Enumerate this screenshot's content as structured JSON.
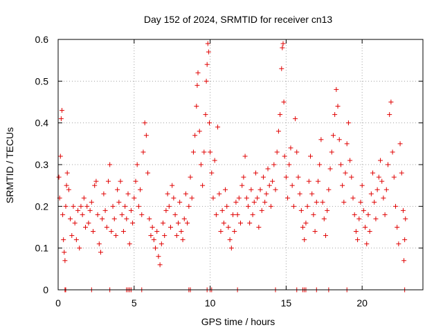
{
  "chart_data": {
    "type": "scatter",
    "title": "Day 152 of 2024, SRMTID for receiver cn13",
    "xlabel": "GPS time / hours",
    "ylabel": "SRMTID / TECUs",
    "xlim": [
      0,
      24
    ],
    "ylim": [
      0,
      0.6
    ],
    "x_ticks": [
      0,
      5,
      10,
      15,
      20
    ],
    "y_ticks": [
      0,
      0.1,
      0.2,
      0.3,
      0.4,
      0.5,
      0.6
    ],
    "x_tick_labels": [
      "0",
      "5",
      "10",
      "15",
      "20"
    ],
    "y_tick_labels": [
      "0",
      "0.1",
      "0.2",
      "0.3",
      "0.4",
      "0.5",
      "0.6"
    ],
    "grid": true,
    "marker": "+",
    "color": "#e00000",
    "series": [
      {
        "name": "SRMTID",
        "points": [
          [
            0.05,
            0.27
          ],
          [
            0.1,
            0.22
          ],
          [
            0.15,
            0.32
          ],
          [
            0.2,
            0.41
          ],
          [
            0.25,
            0.43
          ],
          [
            0.3,
            0.18
          ],
          [
            0.35,
            0.12
          ],
          [
            0.4,
            0.09
          ],
          [
            0.45,
            0.07
          ],
          [
            0.5,
            0.2
          ],
          [
            0.55,
            0.25
          ],
          [
            0.6,
            0.28
          ],
          [
            0.7,
            0.24
          ],
          [
            0.8,
            0.17
          ],
          [
            0.9,
            0.13
          ],
          [
            1.0,
            0.2
          ],
          [
            1.1,
            0.16
          ],
          [
            1.2,
            0.12
          ],
          [
            1.3,
            0.19
          ],
          [
            1.4,
            0.1
          ],
          [
            1.5,
            0.2
          ],
          [
            1.6,
            0.18
          ],
          [
            1.7,
            0.22
          ],
          [
            1.8,
            0.15
          ],
          [
            1.9,
            0.2
          ],
          [
            2.0,
            0.16
          ],
          [
            2.1,
            0.19
          ],
          [
            2.2,
            0.21
          ],
          [
            2.3,
            0.14
          ],
          [
            2.4,
            0.25
          ],
          [
            2.5,
            0.26
          ],
          [
            2.6,
            0.18
          ],
          [
            2.7,
            0.11
          ],
          [
            2.8,
            0.09
          ],
          [
            2.9,
            0.17
          ],
          [
            3.0,
            0.23
          ],
          [
            3.1,
            0.19
          ],
          [
            3.2,
            0.15
          ],
          [
            3.3,
            0.26
          ],
          [
            3.4,
            0.3
          ],
          [
            3.5,
            0.14
          ],
          [
            3.6,
            0.2
          ],
          [
            3.7,
            0.17
          ],
          [
            3.8,
            0.13
          ],
          [
            3.9,
            0.24
          ],
          [
            4.0,
            0.21
          ],
          [
            4.1,
            0.26
          ],
          [
            4.2,
            0.18
          ],
          [
            4.3,
            0.14
          ],
          [
            4.4,
            0.2
          ],
          [
            4.5,
            0.17
          ],
          [
            4.6,
            0.23
          ],
          [
            4.7,
            0.11
          ],
          [
            4.8,
            0.19
          ],
          [
            4.9,
            0.16
          ],
          [
            5.0,
            0.22
          ],
          [
            5.1,
            0.26
          ],
          [
            5.2,
            0.3
          ],
          [
            5.3,
            0.2
          ],
          [
            5.4,
            0.24
          ],
          [
            5.5,
            0.18
          ],
          [
            5.6,
            0.33
          ],
          [
            5.7,
            0.4
          ],
          [
            5.8,
            0.37
          ],
          [
            5.9,
            0.28
          ],
          [
            6.0,
            0.17
          ],
          [
            6.1,
            0.13
          ],
          [
            6.2,
            0.15
          ],
          [
            6.3,
            0.12
          ],
          [
            6.4,
            0.1
          ],
          [
            6.5,
            0.14
          ],
          [
            6.6,
            0.08
          ],
          [
            6.7,
            0.06
          ],
          [
            6.8,
            0.11
          ],
          [
            6.9,
            0.16
          ],
          [
            7.0,
            0.13
          ],
          [
            7.1,
            0.19
          ],
          [
            7.2,
            0.23
          ],
          [
            7.3,
            0.2
          ],
          [
            7.4,
            0.15
          ],
          [
            7.5,
            0.25
          ],
          [
            7.6,
            0.22
          ],
          [
            7.7,
            0.18
          ],
          [
            7.8,
            0.13
          ],
          [
            7.9,
            0.16
          ],
          [
            8.0,
            0.21
          ],
          [
            8.1,
            0.14
          ],
          [
            8.2,
            0.12
          ],
          [
            8.3,
            0.17
          ],
          [
            8.4,
            0.23
          ],
          [
            8.5,
            0.16
          ],
          [
            8.6,
            0.2
          ],
          [
            8.7,
            0.27
          ],
          [
            8.8,
            0.22
          ],
          [
            8.9,
            0.33
          ],
          [
            9.0,
            0.37
          ],
          [
            9.1,
            0.44
          ],
          [
            9.15,
            0.49
          ],
          [
            9.2,
            0.52
          ],
          [
            9.3,
            0.38
          ],
          [
            9.4,
            0.3
          ],
          [
            9.5,
            0.25
          ],
          [
            9.6,
            0.33
          ],
          [
            9.7,
            0.42
          ],
          [
            9.75,
            0.5
          ],
          [
            9.8,
            0.54
          ],
          [
            9.85,
            0.59
          ],
          [
            9.9,
            0.57
          ],
          [
            9.95,
            0.4
          ],
          [
            10.0,
            0.33
          ],
          [
            10.1,
            0.28
          ],
          [
            10.2,
            0.22
          ],
          [
            10.3,
            0.31
          ],
          [
            10.4,
            0.18
          ],
          [
            10.5,
            0.39
          ],
          [
            10.6,
            0.23
          ],
          [
            10.7,
            0.14
          ],
          [
            10.8,
            0.19
          ],
          [
            10.9,
            0.16
          ],
          [
            11.0,
            0.24
          ],
          [
            11.1,
            0.2
          ],
          [
            11.2,
            0.15
          ],
          [
            11.3,
            0.12
          ],
          [
            11.4,
            0.1
          ],
          [
            11.5,
            0.18
          ],
          [
            11.6,
            0.14
          ],
          [
            11.7,
            0.21
          ],
          [
            11.8,
            0.18
          ],
          [
            11.9,
            0.22
          ],
          [
            12.0,
            0.16
          ],
          [
            12.1,
            0.25
          ],
          [
            12.2,
            0.27
          ],
          [
            12.3,
            0.32
          ],
          [
            12.4,
            0.22
          ],
          [
            12.5,
            0.2
          ],
          [
            12.6,
            0.16
          ],
          [
            12.7,
            0.24
          ],
          [
            12.8,
            0.18
          ],
          [
            12.9,
            0.21
          ],
          [
            13.0,
            0.28
          ],
          [
            13.1,
            0.22
          ],
          [
            13.2,
            0.15
          ],
          [
            13.3,
            0.24
          ],
          [
            13.4,
            0.19
          ],
          [
            13.5,
            0.27
          ],
          [
            13.6,
            0.21
          ],
          [
            13.7,
            0.23
          ],
          [
            13.8,
            0.29
          ],
          [
            13.9,
            0.25
          ],
          [
            14.0,
            0.2
          ],
          [
            14.1,
            0.26
          ],
          [
            14.2,
            0.3
          ],
          [
            14.3,
            0.24
          ],
          [
            14.4,
            0.33
          ],
          [
            14.5,
            0.38
          ],
          [
            14.6,
            0.42
          ],
          [
            14.7,
            0.53
          ],
          [
            14.75,
            0.58
          ],
          [
            14.8,
            0.59
          ],
          [
            14.85,
            0.45
          ],
          [
            14.9,
            0.32
          ],
          [
            15.0,
            0.27
          ],
          [
            15.1,
            0.22
          ],
          [
            15.2,
            0.3
          ],
          [
            15.3,
            0.34
          ],
          [
            15.4,
            0.25
          ],
          [
            15.5,
            0.2
          ],
          [
            15.6,
            0.41
          ],
          [
            15.7,
            0.33
          ],
          [
            15.8,
            0.27
          ],
          [
            15.9,
            0.23
          ],
          [
            16.0,
            0.19
          ],
          [
            16.1,
            0.15
          ],
          [
            16.2,
            0.12
          ],
          [
            16.3,
            0.16
          ],
          [
            16.4,
            0.2
          ],
          [
            16.5,
            0.26
          ],
          [
            16.6,
            0.32
          ],
          [
            16.7,
            0.23
          ],
          [
            16.8,
            0.18
          ],
          [
            16.9,
            0.14
          ],
          [
            17.0,
            0.21
          ],
          [
            17.1,
            0.26
          ],
          [
            17.2,
            0.3
          ],
          [
            17.3,
            0.36
          ],
          [
            17.4,
            0.21
          ],
          [
            17.5,
            0.17
          ],
          [
            17.6,
            0.13
          ],
          [
            17.7,
            0.19
          ],
          [
            17.8,
            0.24
          ],
          [
            17.9,
            0.29
          ],
          [
            18.0,
            0.33
          ],
          [
            18.1,
            0.37
          ],
          [
            18.2,
            0.42
          ],
          [
            18.3,
            0.48
          ],
          [
            18.4,
            0.44
          ],
          [
            18.5,
            0.36
          ],
          [
            18.6,
            0.3
          ],
          [
            18.7,
            0.25
          ],
          [
            18.8,
            0.21
          ],
          [
            18.9,
            0.28
          ],
          [
            19.0,
            0.35
          ],
          [
            19.1,
            0.4
          ],
          [
            19.2,
            0.31
          ],
          [
            19.3,
            0.27
          ],
          [
            19.4,
            0.22
          ],
          [
            19.5,
            0.18
          ],
          [
            19.6,
            0.14
          ],
          [
            19.7,
            0.12
          ],
          [
            19.8,
            0.17
          ],
          [
            19.9,
            0.21
          ],
          [
            20.0,
            0.25
          ],
          [
            20.1,
            0.19
          ],
          [
            20.2,
            0.15
          ],
          [
            20.3,
            0.11
          ],
          [
            20.4,
            0.18
          ],
          [
            20.5,
            0.14
          ],
          [
            20.6,
            0.23
          ],
          [
            20.7,
            0.28
          ],
          [
            20.8,
            0.21
          ],
          [
            20.9,
            0.17
          ],
          [
            21.0,
            0.24
          ],
          [
            21.1,
            0.27
          ],
          [
            21.2,
            0.31
          ],
          [
            21.3,
            0.26
          ],
          [
            21.4,
            0.22
          ],
          [
            21.5,
            0.18
          ],
          [
            21.6,
            0.24
          ],
          [
            21.7,
            0.3
          ],
          [
            21.8,
            0.42
          ],
          [
            21.9,
            0.45
          ],
          [
            22.0,
            0.33
          ],
          [
            22.1,
            0.27
          ],
          [
            22.2,
            0.2
          ],
          [
            22.3,
            0.15
          ],
          [
            22.4,
            0.11
          ],
          [
            22.5,
            0.35
          ],
          [
            22.6,
            0.28
          ],
          [
            22.7,
            0.19
          ],
          [
            22.75,
            0.07
          ],
          [
            22.8,
            0.12
          ],
          [
            22.85,
            0.17
          ]
        ]
      }
    ],
    "zero_markers_x": [
      0.45,
      0.5,
      2.2,
      3.4,
      4.5,
      4.6,
      4.7,
      4.8,
      5.5,
      8.6,
      8.7,
      9.8,
      10.0,
      10.1,
      11.8,
      14.3,
      15.7,
      16.1,
      16.2,
      16.3,
      17.0,
      17.8,
      19.0,
      22.8
    ]
  }
}
